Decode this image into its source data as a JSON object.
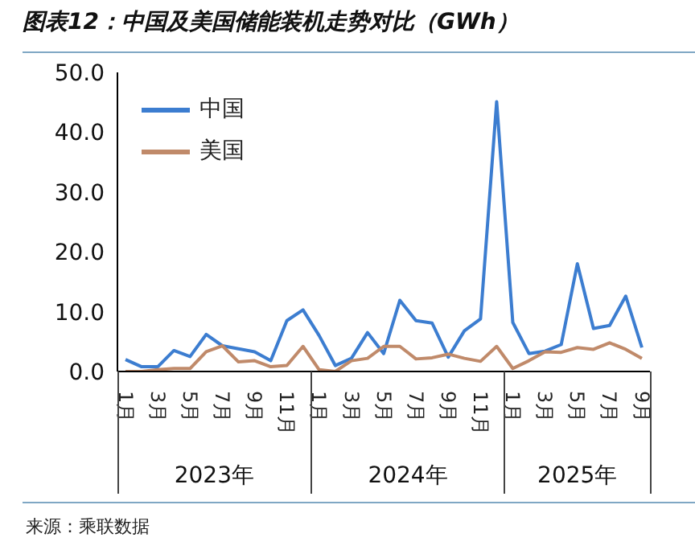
{
  "chart_data": {
    "type": "line",
    "title": "图表12：中国及美国储能装机走势对比（GWh）",
    "categories": [
      "1月",
      null,
      "3月",
      null,
      "5月",
      null,
      "7月",
      null,
      "9月",
      null,
      "11月",
      null,
      "1月",
      null,
      "3月",
      null,
      "5月",
      null,
      "7月",
      null,
      "9月",
      null,
      "11月",
      null,
      "1月",
      null,
      "3月",
      null,
      "5月",
      null,
      "7月",
      null,
      "9月"
    ],
    "series": [
      {
        "name": "中国",
        "color": "#3c7dd0",
        "values": [
          2.0,
          0.8,
          0.8,
          3.5,
          2.5,
          6.2,
          4.3,
          3.8,
          3.3,
          1.8,
          8.5,
          10.3,
          6.0,
          1.0,
          2.2,
          6.5,
          3.0,
          11.9,
          8.5,
          8.1,
          2.4,
          6.8,
          8.8,
          45.1,
          8.2,
          3.0,
          3.4,
          4.5,
          18.0,
          7.2,
          7.7,
          12.6,
          4.0
        ]
      },
      {
        "name": "美国",
        "color": "#c08a6a",
        "values": [
          0.0,
          0.0,
          0.3,
          0.5,
          0.5,
          3.3,
          4.3,
          1.6,
          1.8,
          0.8,
          1.0,
          4.2,
          0.3,
          0.0,
          1.8,
          2.2,
          4.2,
          4.2,
          2.1,
          2.3,
          2.9,
          2.2,
          1.7,
          4.2,
          0.5,
          1.8,
          3.3,
          3.2,
          4.0,
          3.7,
          4.8,
          3.7,
          2.2
        ]
      }
    ],
    "ylim": [
      0,
      50
    ],
    "yticks": [
      {
        "value": 0,
        "label": "0.0"
      },
      {
        "value": 10,
        "label": "10.0"
      },
      {
        "value": 20,
        "label": "20.0"
      },
      {
        "value": 30,
        "label": "30.0"
      },
      {
        "value": 40,
        "label": "40.0"
      },
      {
        "value": 50,
        "label": "50.0"
      }
    ],
    "grid": false,
    "legend": "top left",
    "marker": "none",
    "line_style": "solid",
    "annotations": [
      "2023年",
      "2024年",
      "2025年",
      "来源：乘联数据"
    ]
  }
}
